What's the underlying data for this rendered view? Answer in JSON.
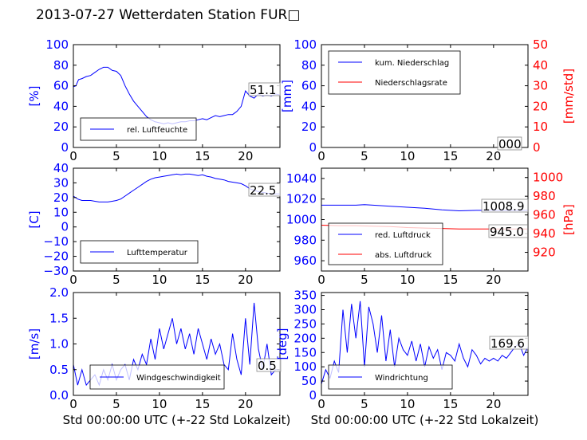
{
  "title": "2013-07-27 Wetterdaten Station FUR□",
  "colors": {
    "primary": "#0000ff",
    "secondary": "#ff0000",
    "axis": "#000000"
  },
  "chart_data": [
    {
      "id": "humidity",
      "type": "line",
      "xlim": [
        0,
        24
      ],
      "ylim": [
        0,
        100
      ],
      "xticks": [
        "0",
        "5",
        "10",
        "15",
        "20"
      ],
      "yticks": [
        "0",
        "20",
        "40",
        "60",
        "80",
        "100"
      ],
      "ylabel": "[%]",
      "value_label": "51.1",
      "legend": {
        "position": "lower-left",
        "entries": [
          "rel. Luftfeuchte"
        ]
      },
      "series": [
        {
          "name": "rel. Luftfeuchte",
          "color": "#0000ff",
          "x": [
            0,
            0.3,
            0.6,
            1,
            1.5,
            2,
            2.5,
            3,
            3.5,
            4,
            4.5,
            5,
            5.5,
            6,
            6.5,
            7,
            7.5,
            8,
            8.5,
            9,
            9.5,
            10,
            10.5,
            11,
            11.5,
            12,
            12.5,
            13,
            13.5,
            14,
            14.5,
            15,
            15.5,
            16,
            16.5,
            17,
            17.5,
            18,
            18.5,
            19,
            19.5,
            20,
            20.5,
            21,
            21.5,
            22,
            22.5,
            23,
            23.5,
            24
          ],
          "y": [
            59,
            60,
            66,
            67,
            69,
            70,
            73,
            76,
            78,
            78,
            75,
            74,
            70,
            60,
            52,
            45,
            40,
            35,
            30,
            27,
            25,
            24,
            23,
            24,
            23,
            24,
            25,
            25,
            26,
            26,
            27,
            28,
            27,
            29,
            31,
            30,
            31,
            32,
            32,
            35,
            40,
            55,
            50,
            48,
            52,
            50,
            51,
            50,
            52,
            51
          ]
        }
      ]
    },
    {
      "id": "precipitation",
      "type": "line",
      "xlim": [
        0,
        24
      ],
      "ylim": [
        0,
        100
      ],
      "y2lim": [
        0,
        50
      ],
      "xticks": [
        "0",
        "5",
        "10",
        "15",
        "20"
      ],
      "yticks": [
        "0",
        "20",
        "40",
        "60",
        "80",
        "100"
      ],
      "y2ticks": [
        "0",
        "10",
        "20",
        "30",
        "40",
        "50"
      ],
      "ylabel": "[mm]",
      "y2label": "[mm/std]",
      "value_label": "000",
      "legend": {
        "position": "upper-left",
        "entries": [
          "kum. Niederschlag",
          "Niederschlagsrate"
        ]
      },
      "series": [
        {
          "name": "kum. Niederschlag",
          "color": "#0000ff",
          "axis": "left",
          "x": [
            0,
            24
          ],
          "y": [
            0,
            0
          ]
        },
        {
          "name": "Niederschlagsrate",
          "color": "#ff0000",
          "axis": "right",
          "x": [
            0,
            24
          ],
          "y": [
            0,
            0
          ]
        }
      ]
    },
    {
      "id": "temperature",
      "type": "line",
      "xlim": [
        0,
        24
      ],
      "ylim": [
        -30,
        40
      ],
      "xticks": [
        "0",
        "5",
        "10",
        "15",
        "20"
      ],
      "yticks": [
        "−30",
        "−20",
        "−10",
        "0",
        "10",
        "20",
        "30",
        "40"
      ],
      "ylabel": "[C]",
      "value_label": "22.5",
      "legend": {
        "position": "lower-left",
        "entries": [
          "Lufttemperatur"
        ]
      },
      "series": [
        {
          "name": "Lufttemperatur",
          "color": "#0000ff",
          "x": [
            0,
            0.5,
            1,
            1.5,
            2,
            2.5,
            3,
            3.5,
            4,
            4.5,
            5,
            5.5,
            6,
            6.5,
            7,
            7.5,
            8,
            8.5,
            9,
            9.5,
            10,
            10.5,
            11,
            11.5,
            12,
            12.5,
            13,
            13.5,
            14,
            14.5,
            15,
            15.5,
            16,
            16.5,
            17,
            17.5,
            18,
            18.5,
            19,
            19.5,
            20,
            20.5,
            21,
            21.5,
            22,
            22.5,
            23,
            23.5,
            24
          ],
          "y": [
            21,
            19,
            18,
            18,
            18,
            17.5,
            17,
            17,
            17,
            17.5,
            18,
            19,
            21,
            23,
            25,
            27,
            29,
            31,
            32.5,
            33.5,
            34,
            34.5,
            35,
            35.5,
            36,
            35.5,
            36,
            36,
            35.5,
            35,
            35.5,
            34.5,
            34,
            33,
            32.5,
            32,
            31,
            30.5,
            30,
            29.5,
            28,
            26,
            25,
            24,
            23.5,
            23,
            22.5,
            22.5,
            22.5
          ]
        }
      ]
    },
    {
      "id": "pressure",
      "type": "line",
      "xlim": [
        0,
        24
      ],
      "ylim": [
        950,
        1050
      ],
      "y2lim": [
        900,
        1010
      ],
      "xticks": [
        "0",
        "5",
        "10",
        "15",
        "20"
      ],
      "yticks": [
        "960",
        "980",
        "1000",
        "1020",
        "1040"
      ],
      "y2ticks": [
        "920",
        "940",
        "960",
        "980",
        "1000"
      ],
      "ylabel": "",
      "y2label": "[hPa]",
      "value_labels": [
        "1008.9",
        "945.0"
      ],
      "legend": {
        "position": "lower-left",
        "entries": [
          "red. Luftdruck",
          "abs. Luftdruck"
        ]
      },
      "series": [
        {
          "name": "red. Luftdruck",
          "color": "#0000ff",
          "axis": "left",
          "x": [
            0,
            2,
            4,
            5,
            6,
            8,
            10,
            12,
            14,
            16,
            18,
            20,
            22,
            24
          ],
          "y": [
            1014,
            1014,
            1014,
            1014.5,
            1014,
            1013,
            1012,
            1011,
            1009.5,
            1008.5,
            1009,
            1009,
            1008.9,
            1009
          ]
        },
        {
          "name": "abs. Luftdruck",
          "color": "#ff0000",
          "axis": "right",
          "x": [
            0,
            2,
            4,
            6,
            8,
            10,
            12,
            14,
            16,
            18,
            20,
            22,
            24
          ],
          "y": [
            949,
            948.5,
            948.5,
            948,
            947.5,
            946.5,
            946,
            945.5,
            945,
            945,
            945,
            945,
            945
          ]
        }
      ]
    },
    {
      "id": "windspeed",
      "type": "line",
      "xlim": [
        0,
        24
      ],
      "ylim": [
        0,
        2.0
      ],
      "xticks": [
        "0",
        "5",
        "10",
        "15",
        "20"
      ],
      "yticks": [
        "0.0",
        "0.5",
        "1.0",
        "1.5",
        "2.0"
      ],
      "ylabel": "[m/s]",
      "xlabel": "Std 00:00:00 UTC (+-22 Std Lokalzeit)",
      "value_label": "0.5",
      "legend": {
        "position": "lower-center",
        "entries": [
          "Windgeschwindigkeit"
        ]
      },
      "series": [
        {
          "name": "Windgeschwindigkeit",
          "color": "#0000ff",
          "x": [
            0,
            0.5,
            1,
            1.5,
            2,
            2.5,
            3,
            3.5,
            4,
            4.5,
            5,
            5.5,
            6,
            6.5,
            7,
            7.5,
            8,
            8.5,
            9,
            9.5,
            10,
            10.5,
            11,
            11.5,
            12,
            12.5,
            13,
            13.5,
            14,
            14.5,
            15,
            15.5,
            16,
            16.5,
            17,
            17.5,
            18,
            18.5,
            19,
            19.5,
            20,
            20.5,
            21,
            21.5,
            22,
            22.5,
            23,
            23.5,
            24
          ],
          "y": [
            0.6,
            0.2,
            0.5,
            0.2,
            0.3,
            0.4,
            0.2,
            0.5,
            0.3,
            0.6,
            0.3,
            0.5,
            0.6,
            0.3,
            0.7,
            0.5,
            0.8,
            0.6,
            1.1,
            0.7,
            1.3,
            0.9,
            1.2,
            1.5,
            1.0,
            1.3,
            0.9,
            1.2,
            0.8,
            1.3,
            1.0,
            0.7,
            1.1,
            0.8,
            1.0,
            0.6,
            0.5,
            1.2,
            0.7,
            0.4,
            1.5,
            0.6,
            1.8,
            0.9,
            0.5,
            1.0,
            0.4,
            0.5,
            0.5
          ]
        }
      ]
    },
    {
      "id": "winddirection",
      "type": "line",
      "xlim": [
        0,
        24
      ],
      "ylim": [
        0,
        360
      ],
      "xticks": [
        "0",
        "5",
        "10",
        "15",
        "20"
      ],
      "yticks": [
        "0",
        "50",
        "100",
        "150",
        "200",
        "250",
        "300",
        "350"
      ],
      "ylabel": "[deg]",
      "xlabel": "Std 00:00:00 UTC (+-22 Std Lokalzeit)",
      "value_label": "169.6",
      "legend": {
        "position": "lower-left",
        "entries": [
          "Windrichtung"
        ]
      },
      "series": [
        {
          "name": "Windrichtung",
          "color": "#0000ff",
          "x": [
            0,
            0.5,
            1,
            1.5,
            2,
            2.5,
            3,
            3.5,
            4,
            4.5,
            5,
            5.5,
            6,
            6.5,
            7,
            7.5,
            8,
            8.5,
            9,
            9.5,
            10,
            10.5,
            11,
            11.5,
            12,
            12.5,
            13,
            13.5,
            14,
            14.5,
            15,
            15.5,
            16,
            16.5,
            17,
            17.5,
            18,
            18.5,
            19,
            19.5,
            20,
            20.5,
            21,
            21.5,
            22,
            22.5,
            23,
            23.5,
            24
          ],
          "y": [
            40,
            90,
            60,
            120,
            80,
            300,
            150,
            320,
            200,
            330,
            100,
            310,
            250,
            150,
            280,
            120,
            230,
            100,
            200,
            160,
            140,
            190,
            120,
            180,
            100,
            170,
            130,
            160,
            90,
            150,
            140,
            120,
            180,
            130,
            100,
            160,
            140,
            110,
            130,
            120,
            130,
            120,
            140,
            130,
            150,
            170,
            180,
            140,
            170
          ]
        }
      ]
    }
  ]
}
